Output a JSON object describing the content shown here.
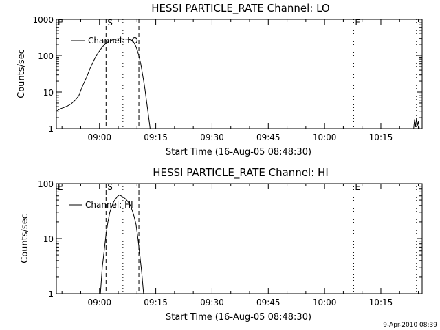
{
  "footer_stamp": "9-Apr-2010 08:39",
  "chart_data": [
    {
      "type": "line",
      "title": "HESSI PARTICLE_RATE Channel: LO",
      "xlabel": "Start Time (16-Aug-05 08:48:30)",
      "ylabel": "Counts/sec",
      "yscale": "log",
      "ylim": [
        1,
        1000
      ],
      "y_ticks": [
        {
          "v": 1,
          "label": "1"
        },
        {
          "v": 10,
          "label": "10"
        },
        {
          "v": 100,
          "label": "100"
        },
        {
          "v": 1000,
          "label": "1000"
        }
      ],
      "xlim": [
        "08:48:30",
        "10:26:00"
      ],
      "x_ticks": [
        "09:00",
        "09:15",
        "09:30",
        "09:45",
        "10:00",
        "10:15"
      ],
      "legend": "Channel: LO",
      "legend_position": "top-left",
      "markers": [
        {
          "label": "E",
          "time": "08:48:30",
          "style": "none"
        },
        {
          "label": "S",
          "time": "09:01:45",
          "style": "dashed"
        },
        {
          "label": "",
          "time": "09:06:15",
          "style": "dotted"
        },
        {
          "label": "",
          "time": "09:10:30",
          "style": "dashed"
        },
        {
          "label": "E",
          "time": "10:07:45",
          "style": "dotted"
        },
        {
          "label": "",
          "time": "10:24:30",
          "style": "dotted"
        }
      ],
      "series": [
        {
          "name": "Channel: LO",
          "points": [
            [
              "08:48:30",
              3
            ],
            [
              "08:49:30",
              3.5
            ],
            [
              "08:50:30",
              3.8
            ],
            [
              "08:51:30",
              4.2
            ],
            [
              "08:52:30",
              4.8
            ],
            [
              "08:53:30",
              6
            ],
            [
              "08:54:30",
              8
            ],
            [
              "08:55:30",
              15
            ],
            [
              "08:56:30",
              25
            ],
            [
              "08:57:30",
              45
            ],
            [
              "08:58:30",
              75
            ],
            [
              "08:59:30",
              115
            ],
            [
              "09:00:30",
              160
            ],
            [
              "09:01:30",
              210
            ],
            [
              "09:02:30",
              250
            ],
            [
              "09:03:30",
              275
            ],
            [
              "09:04:30",
              290
            ],
            [
              "09:05:30",
              295
            ],
            [
              "09:06:30",
              290
            ],
            [
              "09:07:30",
              285
            ],
            [
              "09:08:30",
              270
            ],
            [
              "09:09:00",
              245
            ],
            [
              "09:09:30",
              200
            ],
            [
              "09:10:00",
              150
            ],
            [
              "09:10:30",
              100
            ],
            [
              "09:11:00",
              60
            ],
            [
              "09:11:30",
              30
            ],
            [
              "09:12:00",
              15
            ],
            [
              "09:12:30",
              6
            ],
            [
              "09:13:00",
              2.5
            ],
            [
              "09:13:30",
              1
            ]
          ]
        },
        {
          "name": "Channel: LO",
          "points": [
            [
              "10:23:45",
              1
            ],
            [
              "10:24:00",
              1.8
            ],
            [
              "10:24:15",
              1.1
            ],
            [
              "10:24:30",
              1.9
            ],
            [
              "10:24:45",
              1.2
            ],
            [
              "10:25:00",
              1.6
            ],
            [
              "10:25:15",
              1
            ]
          ]
        }
      ]
    },
    {
      "type": "line",
      "title": "HESSI PARTICLE_RATE Channel: HI",
      "xlabel": "Start Time (16-Aug-05 08:48:30)",
      "ylabel": "Counts/sec",
      "yscale": "log",
      "ylim": [
        1,
        100
      ],
      "y_ticks": [
        {
          "v": 1,
          "label": "1"
        },
        {
          "v": 10,
          "label": "10"
        },
        {
          "v": 100,
          "label": "100"
        }
      ],
      "xlim": [
        "08:48:30",
        "10:26:00"
      ],
      "x_ticks": [
        "09:00",
        "09:15",
        "09:30",
        "09:45",
        "10:00",
        "10:15"
      ],
      "legend": "Channel: HI",
      "legend_position": "top-left",
      "markers": [
        {
          "label": "E",
          "time": "08:48:30",
          "style": "none"
        },
        {
          "label": "S",
          "time": "09:01:45",
          "style": "dashed"
        },
        {
          "label": "",
          "time": "09:06:15",
          "style": "dotted"
        },
        {
          "label": "",
          "time": "09:10:30",
          "style": "dashed"
        },
        {
          "label": "E",
          "time": "10:07:45",
          "style": "dotted"
        },
        {
          "label": "",
          "time": "10:24:30",
          "style": "dotted"
        }
      ],
      "series": [
        {
          "name": "Channel: HI",
          "points": [
            [
              "09:00:15",
              1
            ],
            [
              "09:00:45",
              3
            ],
            [
              "09:01:15",
              6
            ],
            [
              "09:01:45",
              12
            ],
            [
              "09:02:15",
              20
            ],
            [
              "09:02:45",
              30
            ],
            [
              "09:03:15",
              38
            ],
            [
              "09:03:45",
              46
            ],
            [
              "09:04:15",
              52
            ],
            [
              "09:04:45",
              58
            ],
            [
              "09:05:15",
              62
            ],
            [
              "09:05:45",
              60
            ],
            [
              "09:06:15",
              57
            ],
            [
              "09:06:45",
              54
            ],
            [
              "09:07:15",
              50
            ],
            [
              "09:07:45",
              45
            ],
            [
              "09:08:15",
              40
            ],
            [
              "09:08:45",
              32
            ],
            [
              "09:09:15",
              25
            ],
            [
              "09:09:45",
              18
            ],
            [
              "09:10:15",
              10
            ],
            [
              "09:10:45",
              5
            ],
            [
              "09:11:15",
              2.5
            ],
            [
              "09:11:45",
              1
            ]
          ]
        }
      ]
    }
  ]
}
